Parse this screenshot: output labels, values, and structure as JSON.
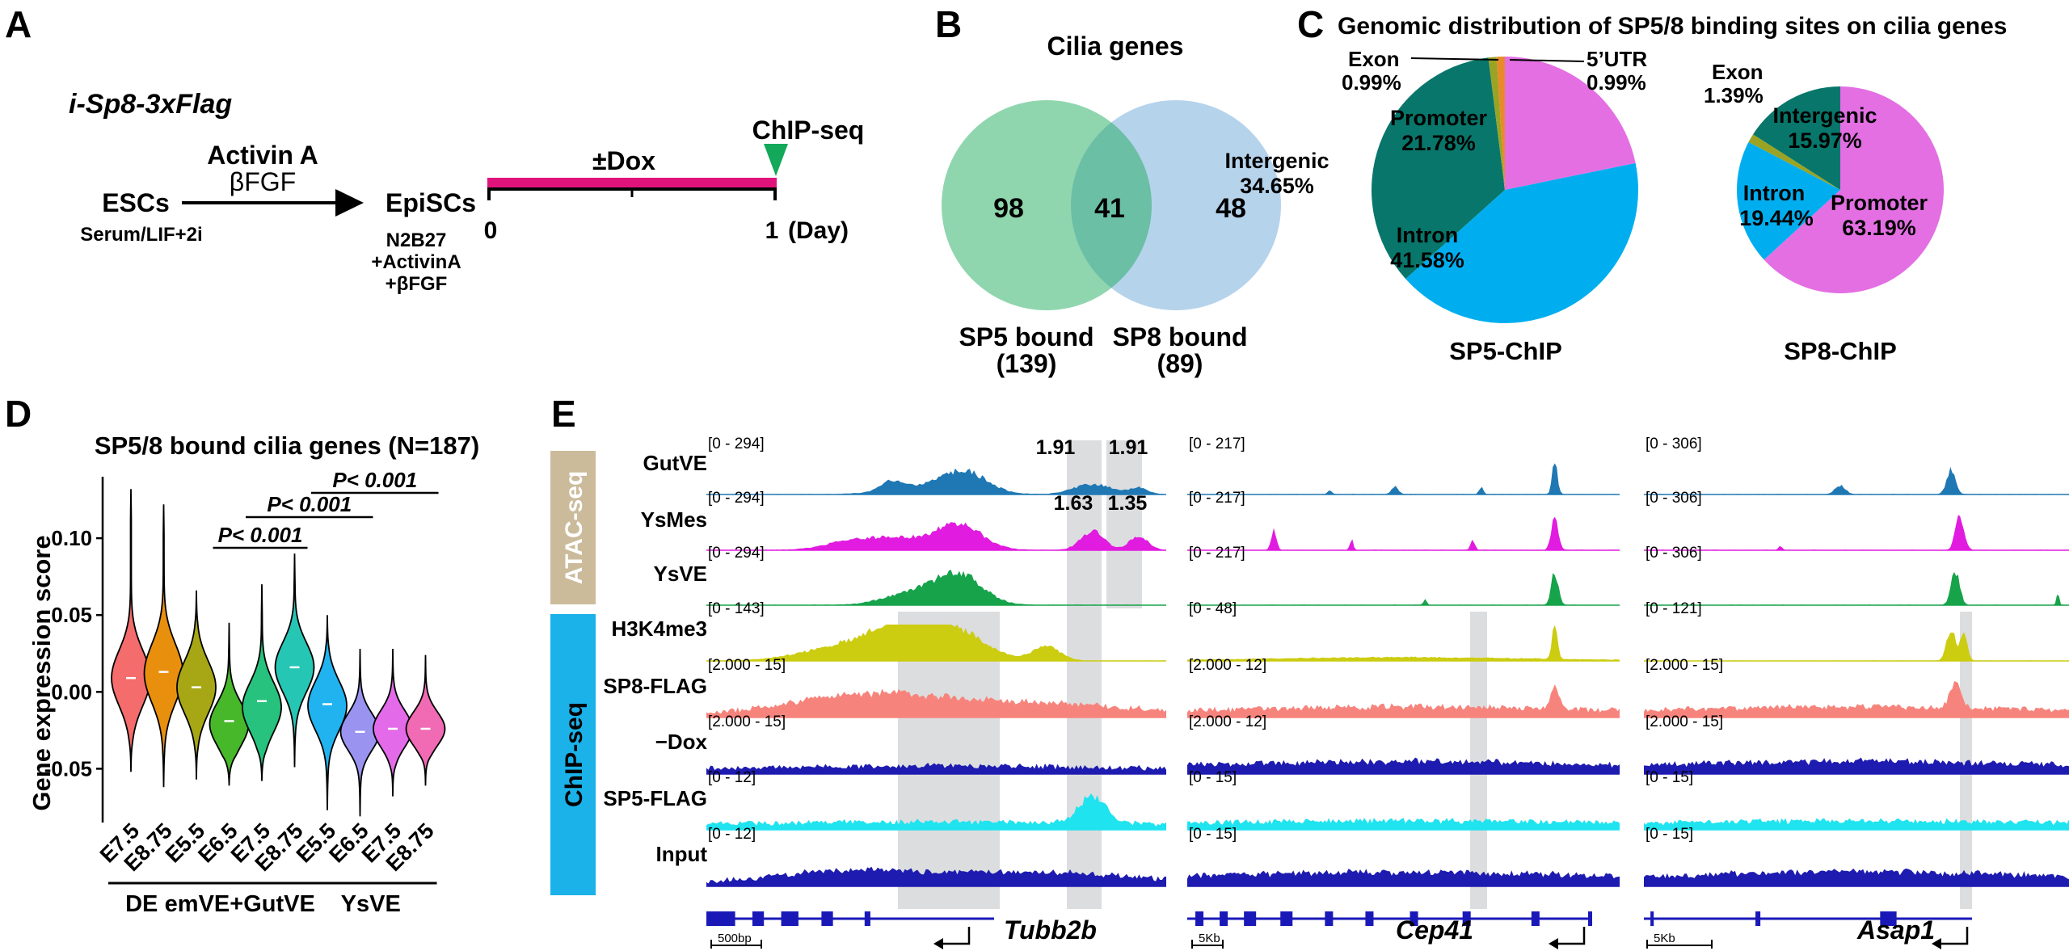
{
  "panel_labels": {
    "a": "A",
    "b": "B",
    "c": "C",
    "d": "D",
    "e": "E"
  },
  "colors": {
    "venn_sp5": "#8FD6AE",
    "venn_sp8": "#B6D3EC",
    "venn_overlap": "#6BBFA4",
    "promoter": "#E36FE3",
    "intron": "#00AEEF",
    "intergenic": "#08766A",
    "exon": "#9AA324",
    "utr": "#E88A2A",
    "violins": [
      "#F46C6C",
      "#E8900E",
      "#A7A715",
      "#46B82A",
      "#27C27E",
      "#26C6B4",
      "#20B3F0",
      "#9A93F0",
      "#E36BE9",
      "#F06AB4"
    ],
    "atac_label_bg": "#CBBB9B",
    "chip_label_bg": "#1AB2E8",
    "gutve": "#1F78B4",
    "ysmes": "#E21BE0",
    "ysve": "#16A34A",
    "h3k4me3": "#CCCC11",
    "sp8flag": "#F7847C",
    "minusdox": "#1E1BB0",
    "sp5flag": "#1FE4F0",
    "input": "#1E1BB0",
    "highlight": "#DCDDDF"
  },
  "panel_a": {
    "construct": "i-Sp8-3xFlag",
    "start_cells": "ESCs",
    "start_conditions": "Serum/LIF+2i",
    "factors_line1": "Activin A",
    "factors_line2": "βFGF",
    "epi_cells": "EpiSCs",
    "epi_conditions": [
      "N2B27",
      "+ActivinA",
      "+βFGF"
    ],
    "treatment": "±Dox",
    "assay": "ChIP-seq",
    "day0": "0",
    "day1": "1",
    "day_unit": "(Day)"
  },
  "panel_b": {
    "title": "Cilia genes",
    "left_only": "98",
    "overlap": "41",
    "right_only": "48",
    "left_label": "SP5 bound",
    "left_count": "(139)",
    "right_label": "SP8 bound",
    "right_count": "(89)"
  },
  "panel_c": {
    "title": "Genomic distribution of SP5/8 binding sites on cilia genes",
    "pies": [
      {
        "name": "SP5-ChIP",
        "slices": [
          {
            "label": "Promoter",
            "value": 21.78,
            "text": "21.78%"
          },
          {
            "label": "Intron",
            "value": 41.58,
            "text": "41.58%"
          },
          {
            "label": "Intergenic",
            "value": 34.65,
            "text": "34.65%"
          },
          {
            "label": "Exon",
            "value": 0.99,
            "text": "0.99%"
          },
          {
            "label": "5’UTR",
            "value": 0.99,
            "text": "0.99%"
          }
        ]
      },
      {
        "name": "SP8-ChIP",
        "slices": [
          {
            "label": "Promoter",
            "value": 63.19,
            "text": "63.19%"
          },
          {
            "label": "Intron",
            "value": 19.44,
            "text": "19.44%"
          },
          {
            "label": "Exon",
            "value": 1.39,
            "text": "1.39%"
          },
          {
            "label": "Intergenic",
            "value": 15.97,
            "text": "15.97%"
          }
        ]
      }
    ]
  },
  "chart_data": {
    "type": "violin",
    "title": "SP5/8 bound cilia genes (N=187)",
    "ylabel": "Gene expression score",
    "ylim": [
      -0.085,
      0.14
    ],
    "yticks": [
      0.1,
      0.05,
      0.0,
      -0.05
    ],
    "ytick_labels": [
      "0.10",
      "0.05",
      "0.00",
      "-0.05"
    ],
    "categories": [
      "E7.5",
      "E8.75",
      "E5.5",
      "E6.5",
      "E7.5",
      "E8.75",
      "E5.5",
      "E6.5",
      "E7.5",
      "E8.75"
    ],
    "groups": [
      {
        "name": "DE",
        "members": [
          0,
          1
        ]
      },
      {
        "name": "emVE+GutVE",
        "members": [
          2,
          3,
          4,
          5
        ]
      },
      {
        "name": "YsVE",
        "members": [
          6,
          7,
          8,
          9
        ]
      }
    ],
    "violins": [
      {
        "min": -0.052,
        "median": 0.009,
        "max": 0.132,
        "mode": 0.009,
        "spread": 0.018
      },
      {
        "min": -0.062,
        "median": 0.013,
        "max": 0.122,
        "mode": 0.012,
        "spread": 0.019
      },
      {
        "min": -0.057,
        "median": 0.003,
        "max": 0.066,
        "mode": 0.003,
        "spread": 0.017
      },
      {
        "min": -0.061,
        "median": -0.019,
        "max": 0.045,
        "mode": -0.021,
        "spread": 0.014
      },
      {
        "min": -0.058,
        "median": -0.006,
        "max": 0.07,
        "mode": -0.01,
        "spread": 0.016
      },
      {
        "min": -0.049,
        "median": 0.016,
        "max": 0.09,
        "mode": 0.016,
        "spread": 0.016
      },
      {
        "min": -0.077,
        "median": -0.008,
        "max": 0.05,
        "mode": -0.009,
        "spread": 0.016
      },
      {
        "min": -0.081,
        "median": -0.026,
        "max": 0.028,
        "mode": -0.026,
        "spread": 0.012
      },
      {
        "min": -0.068,
        "median": -0.024,
        "max": 0.028,
        "mode": -0.024,
        "spread": 0.012
      },
      {
        "min": -0.061,
        "median": -0.024,
        "max": 0.024,
        "mode": -0.024,
        "spread": 0.011
      }
    ],
    "comparisons": [
      {
        "from": 3,
        "to": 5,
        "label": "P< 0.001"
      },
      {
        "from": 4,
        "to": 7,
        "label": "P< 0.001"
      },
      {
        "from": 6,
        "to": 9,
        "label": "P< 0.001"
      }
    ],
    "significance_label": "P< 0.001"
  },
  "panel_e": {
    "atac_label": "ATAC-seq",
    "chip_label": "ChIP-seq",
    "tracks": [
      "GutVE",
      "YsMes",
      "YsVE",
      "H3K4me3",
      "SP8-FLAG",
      "−Dox",
      "SP5-FLAG",
      "Input"
    ],
    "loci": [
      {
        "gene": "Tubb2b",
        "scale_bar": "500bp",
        "ranges": [
          "[0 - 294]",
          "[0 - 294]",
          "[0 - 294]",
          "[0 - 143]",
          "[2.000 - 15]",
          "[2.000 - 15]",
          "[0 - 12]",
          "[0 - 12]"
        ],
        "peak_values": {
          "gutve_peak1": "1.91",
          "gutve_peak2": "1.91",
          "ysmes_peak1": "1.63",
          "ysmes_peak2": "1.35"
        }
      },
      {
        "gene": "Cep41",
        "scale_bar": "5Kb",
        "ranges": [
          "[0 - 217]",
          "[0 - 217]",
          "[0 - 217]",
          "[0 - 48]",
          "[2.000 - 12]",
          "[2.000 - 12]",
          "[0 - 15]",
          "[0 - 15]"
        ]
      },
      {
        "gene": "Asap1",
        "scale_bar": "5Kb",
        "ranges": [
          "[0 - 306]",
          "[0 - 306]",
          "[0 - 306]",
          "[0 - 121]",
          "[2.000 - 15]",
          "[2.000 - 15]",
          "[0 - 15]",
          "[0 - 15]"
        ]
      }
    ]
  }
}
